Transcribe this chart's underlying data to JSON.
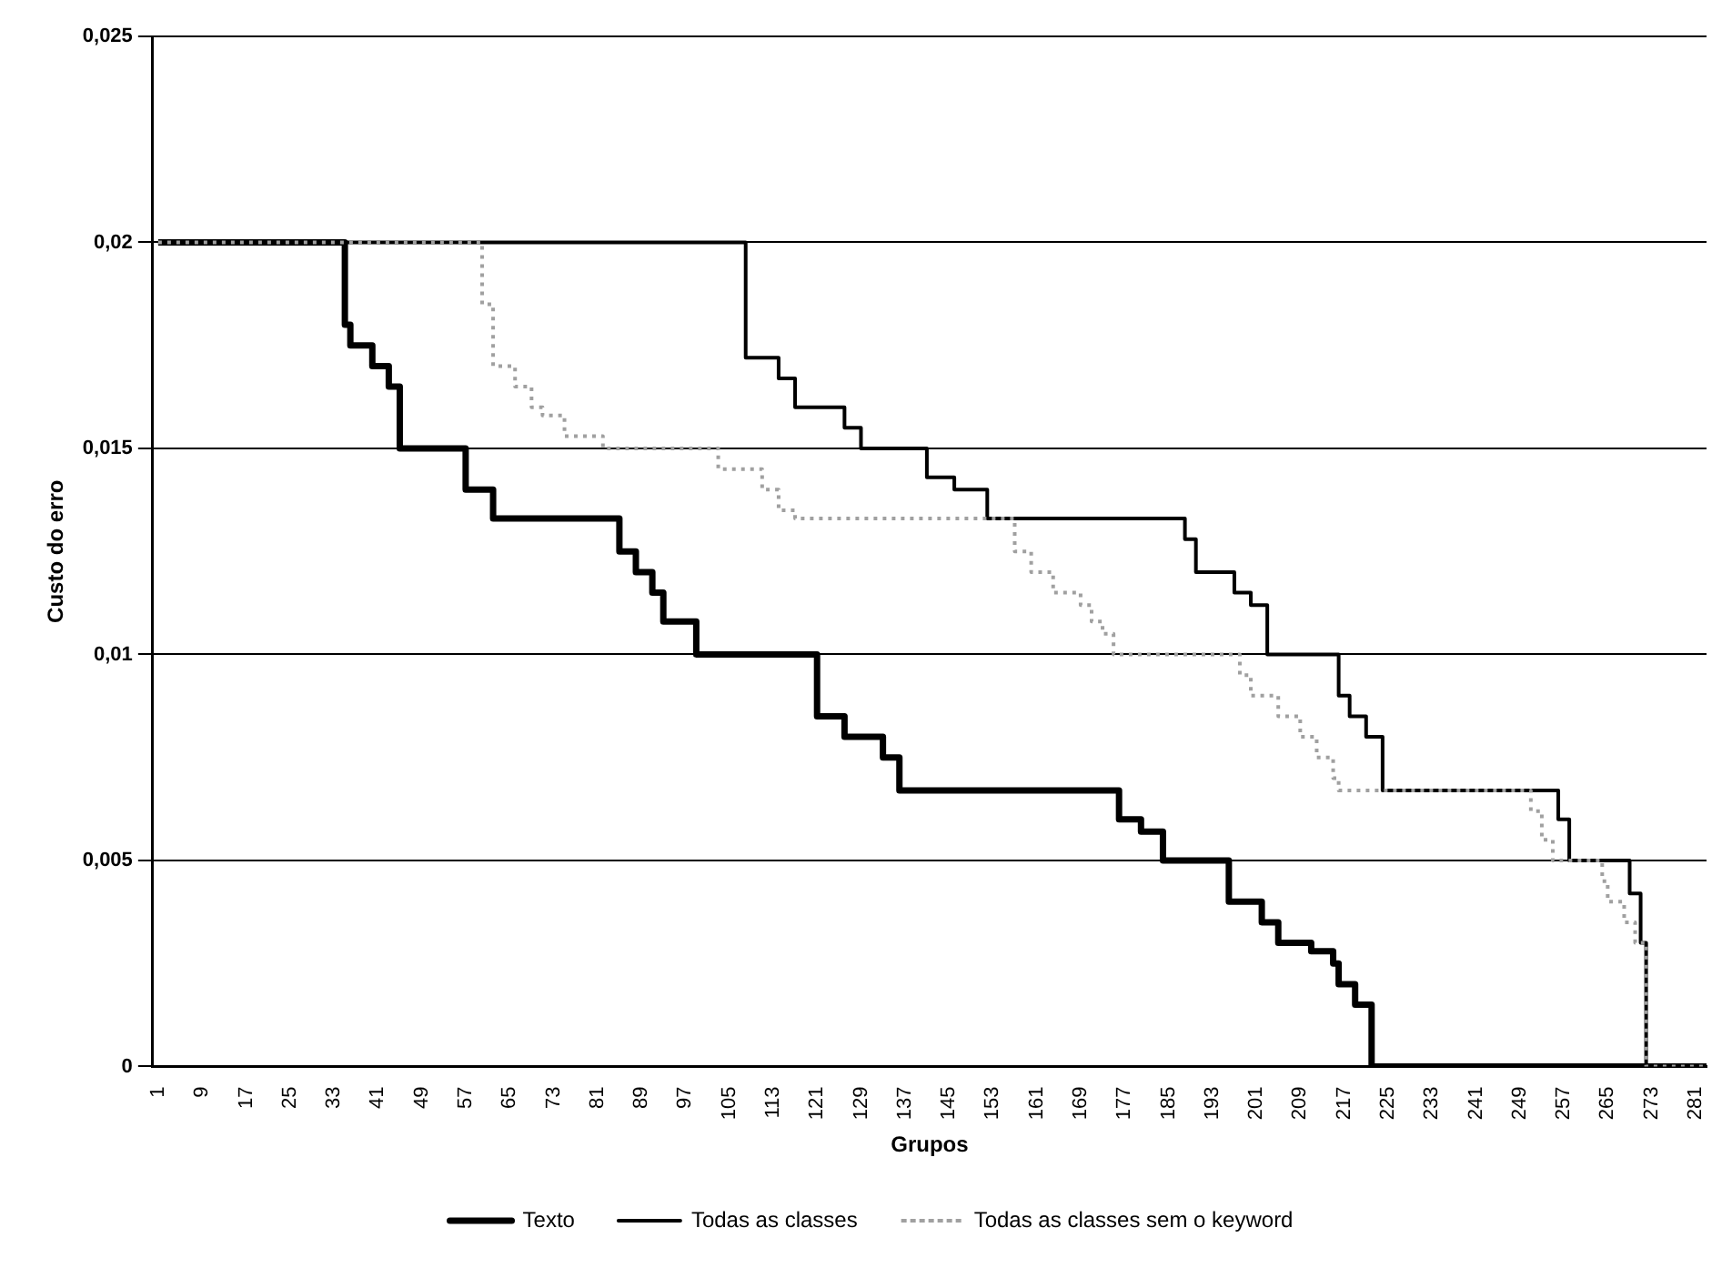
{
  "chart_data": {
    "type": "step",
    "xlabel": "Grupos",
    "ylabel": "Custo do erro",
    "xlim": [
      0,
      283
    ],
    "xticks": [
      1,
      9,
      17,
      25,
      33,
      41,
      49,
      57,
      65,
      73,
      81,
      89,
      97,
      105,
      113,
      121,
      129,
      137,
      145,
      153,
      161,
      169,
      177,
      185,
      193,
      201,
      209,
      217,
      225,
      233,
      241,
      249,
      257,
      265,
      273,
      281
    ],
    "ylim": [
      0,
      0.025
    ],
    "yticks": [
      {
        "value": 0,
        "label": "0"
      },
      {
        "value": 0.005,
        "label": "0,005"
      },
      {
        "value": 0.01,
        "label": "0,01"
      },
      {
        "value": 0.015,
        "label": "0,015"
      },
      {
        "value": 0.02,
        "label": "0,02"
      },
      {
        "value": 0.025,
        "label": "0,025"
      }
    ],
    "grid": "y",
    "legend": "bottom",
    "marker": "none",
    "series": [
      {
        "name": "Texto",
        "color": "#000000",
        "line_style": "solid",
        "x": [
          1,
          35,
          36,
          40,
          43,
          45,
          57,
          62,
          85,
          88,
          91,
          93,
          99,
          121,
          126,
          133,
          136,
          176,
          180,
          184,
          196,
          202,
          205,
          211,
          215,
          216,
          219,
          222,
          283
        ],
        "values": [
          0.02,
          0.018,
          0.0175,
          0.017,
          0.0165,
          0.015,
          0.014,
          0.0133,
          0.0125,
          0.012,
          0.0115,
          0.0108,
          0.01,
          0.0085,
          0.008,
          0.0075,
          0.0067,
          0.006,
          0.0057,
          0.005,
          0.004,
          0.0035,
          0.003,
          0.0028,
          0.0025,
          0.002,
          0.0015,
          0,
          0
        ]
      },
      {
        "name": "Todas as classes",
        "color": "#000000",
        "line_style": "solid",
        "x": [
          1,
          108,
          114,
          117,
          126,
          129,
          141,
          146,
          152,
          188,
          190,
          197,
          200,
          203,
          216,
          218,
          221,
          224,
          256,
          258,
          269,
          271,
          272,
          283
        ],
        "values": [
          0.02,
          0.0172,
          0.0167,
          0.016,
          0.0155,
          0.015,
          0.0143,
          0.014,
          0.0133,
          0.0128,
          0.012,
          0.0115,
          0.0112,
          0.01,
          0.009,
          0.0085,
          0.008,
          0.0067,
          0.006,
          0.005,
          0.0042,
          0.003,
          0,
          0
        ]
      },
      {
        "name": "Todas as classes sem o keyword",
        "color": "#a0a0a0",
        "line_style": "dotted",
        "x": [
          1,
          60,
          62,
          66,
          69,
          71,
          75,
          82,
          103,
          111,
          114,
          117,
          157,
          160,
          164,
          169,
          171,
          173,
          175,
          198,
          200,
          205,
          209,
          212,
          215,
          216,
          251,
          253,
          255,
          264,
          265,
          268,
          270,
          272,
          283
        ],
        "values": [
          0.02,
          0.0185,
          0.017,
          0.0165,
          0.016,
          0.0158,
          0.0153,
          0.015,
          0.0145,
          0.014,
          0.0135,
          0.0133,
          0.0125,
          0.012,
          0.0115,
          0.0112,
          0.0108,
          0.0105,
          0.01,
          0.0095,
          0.009,
          0.0085,
          0.008,
          0.0075,
          0.007,
          0.0067,
          0.0062,
          0.0055,
          0.005,
          0.0045,
          0.004,
          0.0035,
          0.003,
          0,
          0
        ]
      }
    ]
  }
}
